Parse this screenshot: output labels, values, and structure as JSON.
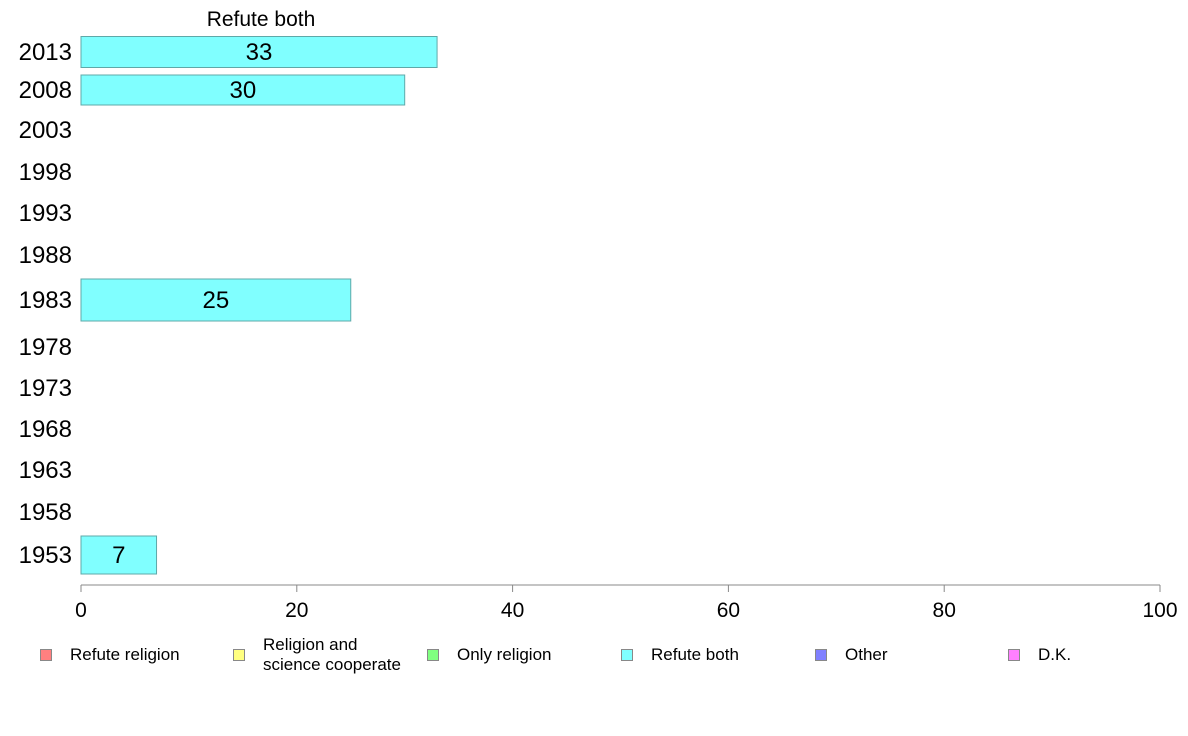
{
  "chart_data": {
    "type": "bar",
    "orientation": "horizontal",
    "title": "Refute both",
    "categories": [
      "2013",
      "2008",
      "2003",
      "1998",
      "1993",
      "1988",
      "1983",
      "1978",
      "1973",
      "1968",
      "1963",
      "1958",
      "1953"
    ],
    "series": [
      {
        "name": "Refute both",
        "values": [
          33,
          30,
          null,
          null,
          null,
          null,
          25,
          null,
          null,
          null,
          null,
          null,
          7
        ]
      }
    ],
    "xlim": [
      0,
      100
    ],
    "xticks": [
      0,
      20,
      40,
      60,
      80,
      100
    ],
    "bar_color": "#80ffff",
    "legend_position": "bottom",
    "legend": [
      {
        "label": "Refute religion",
        "color": "#ff8080"
      },
      {
        "label": "Religion and\nscience cooperate",
        "color": "#ffff80"
      },
      {
        "label": "Only religion",
        "color": "#80ff80"
      },
      {
        "label": "Refute both",
        "color": "#80ffff"
      },
      {
        "label": "Other",
        "color": "#8080ff"
      },
      {
        "label": "D.K.",
        "color": "#ff80ff"
      }
    ]
  }
}
